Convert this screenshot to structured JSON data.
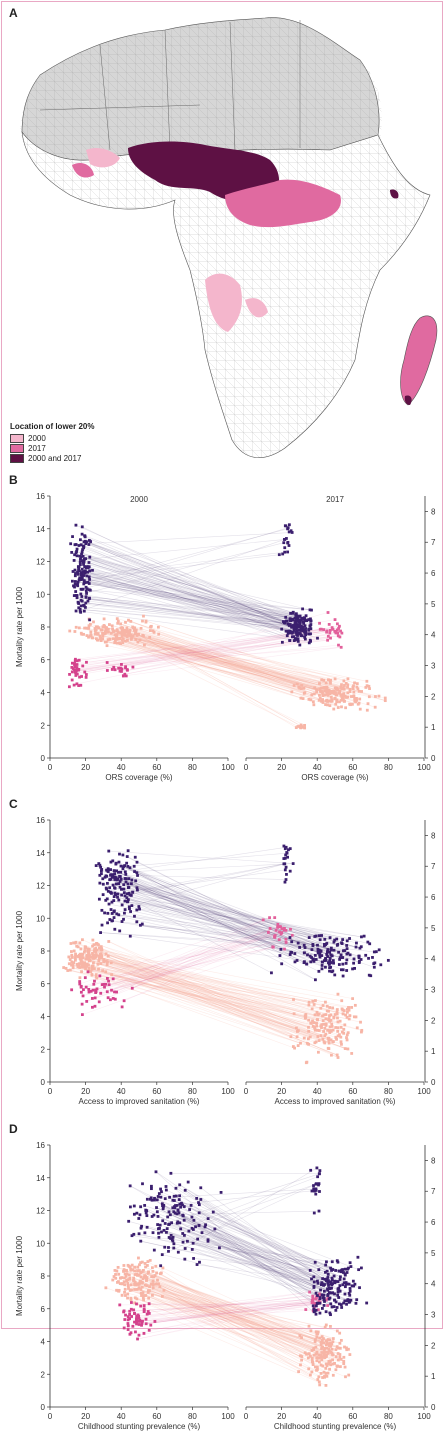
{
  "panels": {
    "a": {
      "label": "A"
    },
    "b": {
      "label": "B"
    },
    "c": {
      "label": "C"
    },
    "d": {
      "label": "D"
    }
  },
  "legend": {
    "title": "Location of lower 20%",
    "items": [
      {
        "label": "2000",
        "color": "#f4b6cc"
      },
      {
        "label": "2017",
        "color": "#e06aa0"
      },
      {
        "label": "2000 and 2017",
        "color": "#5e1144"
      }
    ]
  },
  "colors": {
    "land": "#ffffff",
    "excluded": "#d6d6d6",
    "border": "#555555",
    "dark_series": "#3b1f6e",
    "magenta_series": "#d4428c",
    "light_series": "#f7b5a6",
    "mauve_series": "#e2609b"
  },
  "chart_data": [
    {
      "type": "scatter",
      "panel": "B",
      "titles": [
        "2000",
        "2017"
      ],
      "xlabel": "ORS coverage (%)",
      "ylabel": "Mortality rate per 1000",
      "xlim": [
        0,
        100
      ],
      "ylim": [
        0,
        16
      ],
      "y2lim": [
        0,
        8.5
      ],
      "xticks": [
        0,
        20,
        40,
        60,
        80,
        100
      ],
      "yticks": [
        0,
        2,
        4,
        6,
        8,
        10,
        12,
        14,
        16
      ],
      "y2ticks": [
        0,
        1,
        2,
        3,
        4,
        5,
        6,
        7,
        8
      ],
      "clusters_2000": [
        {
          "series": "dark",
          "x": [
            11,
            25
          ],
          "y": [
            7.5,
            15.2
          ],
          "n": 140
        },
        {
          "series": "light",
          "x": [
            5,
            68
          ],
          "y": [
            6.5,
            8.8
          ],
          "n": 170
        },
        {
          "series": "magenta",
          "x": [
            8,
            22
          ],
          "y": [
            4.0,
            6.6
          ],
          "n": 40
        },
        {
          "series": "magenta",
          "x": [
            30,
            50
          ],
          "y": [
            4.8,
            6.0
          ],
          "n": 20
        }
      ],
      "clusters_2017": [
        {
          "series": "dark",
          "x": [
            18,
            42
          ],
          "y": [
            6.5,
            9.5
          ],
          "n": 150
        },
        {
          "series": "dark",
          "x": [
            18,
            28
          ],
          "y": [
            11.5,
            15.2
          ],
          "n": 20
        },
        {
          "series": "light",
          "x": [
            20,
            84
          ],
          "y": [
            2.6,
            5.2
          ],
          "n": 170
        },
        {
          "series": "light",
          "x": [
            26,
            36
          ],
          "y": [
            1.7,
            2.1
          ],
          "n": 10
        },
        {
          "series": "mauve",
          "x": [
            40,
            58
          ],
          "y": [
            6.5,
            9.0
          ],
          "n": 30
        }
      ]
    },
    {
      "type": "scatter",
      "panel": "C",
      "xlabel": "Access to improved sanitation (%)",
      "ylabel": "Mortality rate per 1000",
      "xlim": [
        0,
        100
      ],
      "ylim": [
        0,
        16
      ],
      "y2lim": [
        0,
        8.5
      ],
      "xticks": [
        0,
        20,
        40,
        60,
        80,
        100
      ],
      "yticks": [
        0,
        2,
        4,
        6,
        8,
        10,
        12,
        14,
        16
      ],
      "y2ticks": [
        0,
        1,
        2,
        3,
        4,
        5,
        6,
        7,
        8
      ],
      "clusters_2000": [
        {
          "series": "dark",
          "x": [
            22,
            55
          ],
          "y": [
            8.5,
            15.2
          ],
          "n": 160
        },
        {
          "series": "light",
          "x": [
            5,
            40
          ],
          "y": [
            6.0,
            9.0
          ],
          "n": 170
        },
        {
          "series": "magenta",
          "x": [
            5,
            50
          ],
          "y": [
            3.8,
            7.0
          ],
          "n": 50
        }
      ],
      "clusters_2017": [
        {
          "series": "dark",
          "x": [
            10,
            88
          ],
          "y": [
            6.0,
            9.5
          ],
          "n": 160
        },
        {
          "series": "dark",
          "x": [
            18,
            28
          ],
          "y": [
            11.5,
            15.2
          ],
          "n": 20
        },
        {
          "series": "light",
          "x": [
            15,
            75
          ],
          "y": [
            1.0,
            6.0
          ],
          "n": 170
        },
        {
          "series": "mauve",
          "x": [
            5,
            30
          ],
          "y": [
            7.5,
            10.5
          ],
          "n": 30
        }
      ]
    },
    {
      "type": "scatter",
      "panel": "D",
      "xlabel": "Childhood stunting prevalence (%)",
      "ylabel": "Mortality rate per 1000",
      "xlim": [
        0,
        100
      ],
      "ylim": [
        0,
        16
      ],
      "y2lim": [
        0,
        8.5
      ],
      "xticks": [
        0,
        20,
        40,
        60,
        80,
        100
      ],
      "yticks": [
        0,
        2,
        4,
        6,
        8,
        10,
        12,
        14,
        16
      ],
      "y2ticks": [
        0,
        1,
        2,
        3,
        4,
        5,
        6,
        7,
        8
      ],
      "clusters_2000": [
        {
          "series": "dark",
          "x": [
            35,
            100
          ],
          "y": [
            8.0,
            15.2
          ],
          "n": 160
        },
        {
          "series": "light",
          "x": [
            28,
            70
          ],
          "y": [
            6.0,
            9.5
          ],
          "n": 160
        },
        {
          "series": "magenta",
          "x": [
            35,
            62
          ],
          "y": [
            3.8,
            7.0
          ],
          "n": 60
        }
      ],
      "clusters_2017": [
        {
          "series": "dark",
          "x": [
            28,
            70
          ],
          "y": [
            5.0,
            9.5
          ],
          "n": 160
        },
        {
          "series": "dark",
          "x": [
            34,
            44
          ],
          "y": [
            11.5,
            15.2
          ],
          "n": 20
        },
        {
          "series": "light",
          "x": [
            25,
            62
          ],
          "y": [
            1.0,
            5.5
          ],
          "n": 160
        },
        {
          "series": "mauve",
          "x": [
            32,
            48
          ],
          "y": [
            5.5,
            7.5
          ],
          "n": 30
        }
      ]
    }
  ]
}
